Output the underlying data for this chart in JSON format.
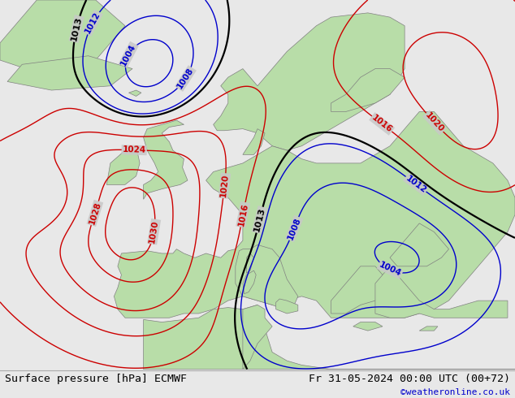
{
  "figsize": [
    6.34,
    4.9
  ],
  "dpi": 100,
  "title_left": "Surface pressure [hPa] ECMWF",
  "title_right": "Fr 31-05-2024 00:00 UTC (00+72)",
  "copyright": "©weatheronline.co.uk",
  "title_fontsize": 9.5,
  "copyright_fontsize": 8,
  "copyright_color": "#0000cc",
  "title_color": "#000000",
  "ocean_color": "#c8c8c8",
  "land_color": "#b8dda8",
  "bottom_bg": "#e8e8e8",
  "red_color": "#cc0000",
  "blue_color": "#0000cc",
  "black_color": "#000000"
}
